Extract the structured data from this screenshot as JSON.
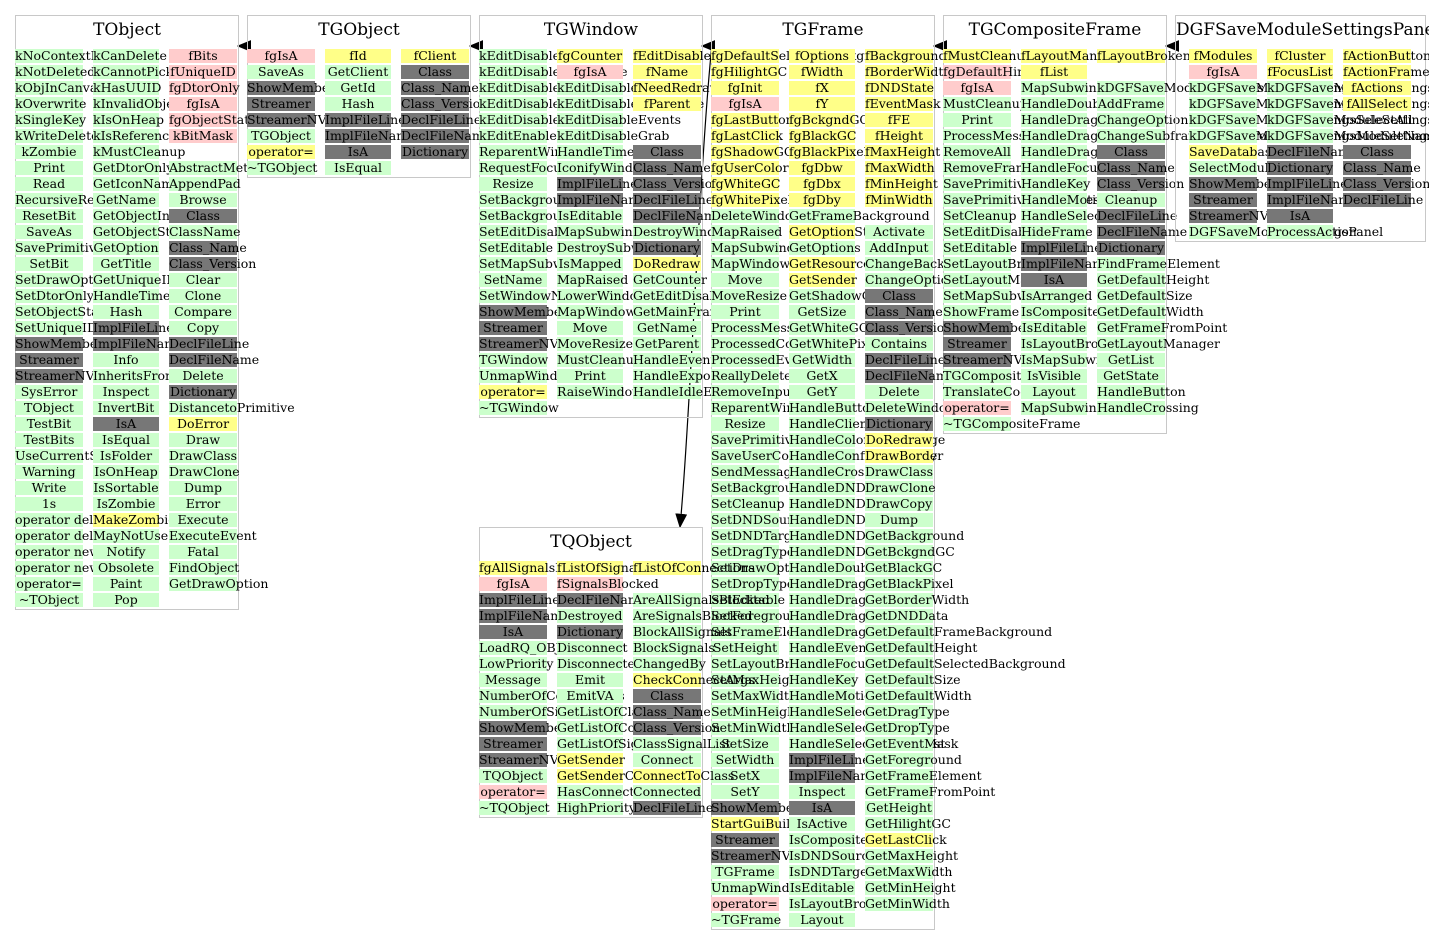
{
  "diagram": {
    "classes": [
      {
        "id": "TObject",
        "title": "TObject",
        "columns": [
          [
            "kNoContextMenu",
            "kNotDeleted",
            "kObjInCanvas",
            "kOverwrite",
            "kSingleKey",
            "kWriteDelete",
            "kZombie",
            "Print",
            "Read",
            "RecursiveRemove",
            "ResetBit",
            "SaveAs",
            "SavePrimitive",
            "SetBit",
            "SetDrawOption",
            "SetDtorOnly",
            "SetObjectStat",
            "SetUniqueID",
            "ShowMembers",
            "Streamer",
            "StreamerNVirtual",
            "SysError",
            "TObject",
            "TestBit",
            "TestBits",
            "UseCurrentStyle",
            "Warning",
            "Write",
            "1s",
            "operator delete",
            "operator delete[]",
            "operator new",
            "operator new[]",
            "operator=",
            "~TObject"
          ],
          [
            "kCanDelete",
            "kCannotPick",
            "kHasUUID",
            "kInvalidObject",
            "kIsOnHeap",
            "kIsReferenced",
            "kMustCleanup",
            "GetDtorOnly",
            "GetIconName",
            "GetName",
            "GetObjectInfo",
            "GetObjectStat",
            "GetOption",
            "GetTitle",
            "GetUniqueID",
            "HandleTimer",
            "Hash",
            "ImplFileLine",
            "ImplFileName",
            "Info",
            "InheritsFrom",
            "Inspect",
            "InvertBit",
            "IsA",
            "IsEqual",
            "IsFolder",
            "IsOnHeap",
            "IsSortable",
            "IsZombie",
            "MakeZombie",
            "MayNotUse",
            "Notify",
            "Obsolete",
            "Paint",
            "Pop"
          ],
          [
            "fBits",
            "fUniqueID",
            "fgDtorOnly",
            "fgIsA",
            "fgObjectStat",
            "kBitMask",
            "",
            "AbstractMethod",
            "AppendPad",
            "Browse",
            "Class",
            "ClassName",
            "Class_Name",
            "Class_Version",
            "Clear",
            "Clone",
            "Compare",
            "Copy",
            "DeclFileLine",
            "DeclFileName",
            "Delete",
            "Dictionary",
            "DistancetoPrimitive",
            "DoError",
            "Draw",
            "DrawClass",
            "DrawClone",
            "Dump",
            "Error",
            "Execute",
            "ExecuteEvent",
            "Fatal",
            "FindObject",
            "GetDrawOption"
          ]
        ]
      },
      {
        "id": "TGObject",
        "title": "TGObject",
        "columns": [
          [
            "fgIsA",
            "SaveAs",
            "ShowMembers",
            "Streamer",
            "StreamerNVirtual",
            "TGObject",
            "operator=",
            "~TGObject"
          ],
          [
            "fId",
            "GetClient",
            "GetId",
            "Hash",
            "ImplFileLine",
            "ImplFileName",
            "IsA",
            "IsEqual"
          ],
          [
            "fClient",
            "Class",
            "Class_Name",
            "Class_Version",
            "DeclFileLine",
            "DeclFileName",
            "Dictionary"
          ]
        ]
      },
      {
        "id": "TGWindow",
        "title": "TGWindow",
        "columns": [
          [
            "kEditDisableHeight",
            "kEditDisableKeyEnable",
            "kEditDisableLayout",
            "kEditDisableResize",
            "kEditDisableWidth",
            "kEditEnable",
            "ReparentWindow",
            "RequestFocus",
            "Resize",
            "SetBackgroundColor",
            "SetBackgroundPixmap",
            "SetEditDisabled",
            "SetEditable",
            "SetMapSubwindows",
            "SetName",
            "SetWindowName",
            "ShowMembers",
            "Streamer",
            "StreamerNVirtual",
            "TGWindow",
            "UnmapWindow",
            "operator=",
            "~TGWindow"
          ],
          [
            "fgCounter",
            "fgIsA",
            "kEditDisable",
            "kEditDisableBtnEnable",
            "kEditDisableEvents",
            "kEditDisableGrab",
            "HandleTimer",
            "IconifyWindow",
            "ImplFileLine",
            "ImplFileName",
            "IsEditable",
            "MapSubwindows",
            "DestroySubwindows",
            "IsMapped",
            "MapRaised",
            "LowerWindow",
            "MapWindow",
            "Move",
            "MoveResize",
            "MustCleanup",
            "Print",
            "RaiseWindow"
          ],
          [
            "fEditDisabled",
            "fName",
            "fNeedRedraw",
            "fParent",
            "",
            "",
            "Class",
            "Class_Name",
            "Class_Version",
            "DeclFileLine",
            "DeclFileName",
            "DestroyWindow",
            "Dictionary",
            "DoRedraw",
            "GetCounter",
            "GetEditDisabled",
            "GetMainFrame",
            "GetName",
            "GetParent",
            "HandleEvent",
            "HandleExpose",
            "HandleIdleEvent"
          ]
        ]
      },
      {
        "id": "TGFrame",
        "title": "TGFrame",
        "columns": [
          [
            "fgDefaultSelectedBackground",
            "fgHilightGC",
            "fgInit",
            "fgIsA",
            "fgLastButton",
            "fgLastClick",
            "fgShadowGC",
            "fgUserColor",
            "fgWhiteGC",
            "fgWhitePixel",
            "DeleteWindowCalled",
            "MapRaised",
            "MapSubwindows",
            "MapWindow",
            "Move",
            "MoveResize",
            "Print",
            "ProcessMessage",
            "ProcessedConfigure",
            "ProcessedEvent",
            "ReallyDelete",
            "RemoveInput",
            "ReparentWindow",
            "Resize",
            "SavePrimitive",
            "SaveUserColor",
            "SendMessage",
            "SetBackgroundColor",
            "SetCleanup",
            "SetDNDSource",
            "SetDNDTarget",
            "SetDragType",
            "SetDrawOption",
            "SetDropType",
            "SetEditable",
            "SetForegroundColor",
            "SetFrameElement",
            "SetHeight",
            "SetLayoutBroken",
            "SetMaxHeight",
            "SetMaxWidth",
            "SetMinHeight",
            "SetMinWidth",
            "SetSize",
            "SetWidth",
            "SetX",
            "SetY",
            "ShowMembers",
            "StartGuiBuilding",
            "Streamer",
            "StreamerNVirtual",
            "TGFrame",
            "UnmapWindow",
            "operator=",
            "~TGFrame"
          ],
          [
            "fOptions",
            "fWidth",
            "fX",
            "fY",
            "fgBckgndGC",
            "fgBlackGC",
            "fgBlackPixel",
            "fgDbw",
            "fgDbx",
            "fgDby",
            "GetFrameBackground",
            "GetOptionString",
            "GetOptions",
            "GetResourcePool",
            "GetSender",
            "GetShadowGC",
            "GetSize",
            "GetWhiteGC",
            "GetWhitePixel",
            "GetWidth",
            "GetX",
            "GetY",
            "HandleButton",
            "HandleClientMessage",
            "HandleColormapChange",
            "HandleConfigureNotify",
            "HandleCrossing",
            "HandleDNDDrop",
            "HandleDNDEnter",
            "HandleDNDFinished",
            "HandleDNDLeave",
            "HandleDNDPosition",
            "HandleDoubleClick",
            "HandleDragDrop",
            "HandleDragEnter",
            "HandleDragLeave",
            "HandleDragMotion",
            "HandleEvent",
            "HandleFocusChange",
            "HandleKey",
            "HandleMotion",
            "HandleSelection",
            "HandleSelectionClear",
            "HandleSelectionRequest",
            "ImplFileLine",
            "ImplFileName",
            "Inspect",
            "IsA",
            "IsActive",
            "IsComposite",
            "IsDNDSource",
            "IsDNDTarget",
            "IsEditable",
            "IsLayoutBroken",
            "Layout"
          ],
          [
            "fBackground",
            "fBorderWidth",
            "fDNDState",
            "fEventMask",
            "fFE",
            "fHeight",
            "fMaxHeight",
            "fMaxWidth",
            "fMinHeight",
            "fMinWidth",
            "",
            "Activate",
            "AddInput",
            "ChangeBackground",
            "ChangeOptions",
            "Class",
            "Class_Name",
            "Class_Version",
            "Contains",
            "DeclFileLine",
            "DeclFileName",
            "Delete",
            "DeleteWindow",
            "Dictionary",
            "DoRedraw",
            "DrawBorder",
            "DrawClass",
            "DrawClone",
            "DrawCopy",
            "Dump",
            "GetBackground",
            "GetBckgndGC",
            "GetBlackGC",
            "GetBlackPixel",
            "GetBorderWidth",
            "GetDNDData",
            "GetDefaultFrameBackground",
            "GetDefaultHeight",
            "GetDefaultSelectedBackground",
            "GetDefaultSize",
            "GetDefaultWidth",
            "GetDragType",
            "GetDropType",
            "GetEventMask",
            "GetForeground",
            "GetFrameElement",
            "GetFrameFromPoint",
            "GetHeight",
            "GetHilightGC",
            "GetLastClick",
            "GetMaxHeight",
            "GetMaxWidth",
            "GetMinHeight",
            "GetMinWidth"
          ]
        ]
      },
      {
        "id": "TGCompositeFrame",
        "title": "TGCompositeFrame",
        "columns": [
          [
            "fMustCleanup",
            "fgDefaultHints",
            "fgIsA",
            "MustCleanup",
            "Print",
            "ProcessMessage",
            "RemoveAll",
            "RemoveFrame",
            "SavePrimitive",
            "SavePrimitiveSubframes",
            "SetCleanup",
            "SetEditDisabled",
            "SetEditable",
            "SetLayoutBroken",
            "SetLayoutManager",
            "SetMapSubwindows",
            "ShowFrame",
            "ShowMembers",
            "Streamer",
            "StreamerNVirtual",
            "TGCompositeFrame",
            "TranslateCoordinates",
            "operator=",
            "~TGCompositeFrame"
          ],
          [
            "fLayoutManager",
            "fList",
            "MapSubwindows",
            "HandleDoubleClick",
            "HandleDragDrop",
            "HandleDragEnter",
            "HandleDragLeave",
            "HandleFocusChange",
            "HandleKey",
            "HandleMotion",
            "HandleSelection",
            "HideFrame",
            "ImplFileLine",
            "ImplFileName",
            "IsA",
            "IsArranged",
            "IsComposite",
            "IsEditable",
            "IsLayoutBroken",
            "IsMapSubwindows",
            "IsVisible",
            "Layout",
            "MapSubwindows"
          ],
          [
            "fLayoutBroken",
            "",
            "kDGFSaveModuleSettings",
            "AddFrame",
            "ChangeOptions",
            "ChangeSubframesBackground",
            "Class",
            "Class_Name",
            "Class_Version",
            "Cleanup",
            "DeclFileLine",
            "DeclFileName",
            "Dictionary",
            "FindFrameElement",
            "GetDefaultHeight",
            "GetDefaultSize",
            "GetDefaultWidth",
            "GetFrameFromPoint",
            "GetLayoutManager",
            "GetList",
            "GetState",
            "HandleButton",
            "HandleCrossing"
          ]
        ]
      },
      {
        "id": "DGFSaveModuleSettingsPanel",
        "title": "DGFSaveModuleSettingsPanel",
        "columns": [
          [
            "fModules",
            "fgIsA",
            "kDGFSaveModuleSettingsRestore",
            "kDGFSaveModuleSettingsSelect",
            "kDGFSaveModuleSettingsSelectAll",
            "kDGFSaveModuleSettingsModuleName",
            "SaveDatabase",
            "SelectModule",
            "ShowMembers",
            "Streamer",
            "StreamerNVirtual",
            "DGFSaveModuleSettingsPanel"
          ],
          [
            "fCluster",
            "fFocusList",
            "kDGFSaveModuleSettingsGroupFrame",
            "kDGFSaveModuleSettingsSelectColumn",
            "kDGFSaveModuleSettingsSelectNone",
            "kDGFSaveModuleSettingsModuleKeys",
            "DeclFileName",
            "Dictionary",
            "ImplFileLine",
            "ImplFileName",
            "IsA",
            "ProcessAction"
          ],
          [
            "fActionButtons",
            "fActionFrame",
            "fActions",
            "fAllSelect",
            "",
            "",
            "Class",
            "Class_Name",
            "Class_Version",
            "DeclFileLine"
          ]
        ]
      },
      {
        "id": "TQObject",
        "title": "TQObject",
        "columns": [
          [
            "fgAllSignalsBlocked",
            "fgIsA",
            "ImplFileLine",
            "ImplFileName",
            "IsA",
            "LoadRQ_OBJECT",
            "LowPriority",
            "Message",
            "NumberOfConnections",
            "NumberOfSignals",
            "ShowMembers",
            "Streamer",
            "StreamerNVirtual",
            "TQObject",
            "operator=",
            "~TQObject"
          ],
          [
            "fListOfSignals",
            "fSignalsBlocked",
            "DeclFileName",
            "Destroyed",
            "Dictionary",
            "Disconnect",
            "Disconnected",
            "Emit",
            "EmitVA",
            "GetListOfClassSignals",
            "GetListOfConnections",
            "GetListOfSignals",
            "GetSender",
            "GetSenderClassName",
            "HasConnection",
            "HighPriority"
          ],
          [
            "fListOfConnections",
            "",
            "AreAllSignalsBlocked",
            "AreSignalsBlocked",
            "BlockAllSignals",
            "BlockSignals",
            "ChangedBy",
            "CheckConnectArgs",
            "Class",
            "Class_Name",
            "Class_Version",
            "ClassSignalList",
            "Connect",
            "ConnectToClass",
            "Connected",
            "DeclFileLine"
          ]
        ]
      }
    ],
    "edges": [
      {
        "from": "TGObject",
        "to": "TObject"
      },
      {
        "from": "TGWindow",
        "to": "TGObject"
      },
      {
        "from": "TGFrame",
        "to": "TGWindow"
      },
      {
        "from": "TGFrame",
        "to": "TQObject"
      },
      {
        "from": "TGCompositeFrame",
        "to": "TGFrame"
      },
      {
        "from": "DGFSaveModuleSettingsPanel",
        "to": "TGCompositeFrame"
      }
    ],
    "colors": {
      "method": "#ccffcc",
      "inherited": "#777777",
      "private": "#ffcccc",
      "protected": "#ffff88",
      "edge": "#000000",
      "box_border": "#c8c8c8"
    }
  }
}
